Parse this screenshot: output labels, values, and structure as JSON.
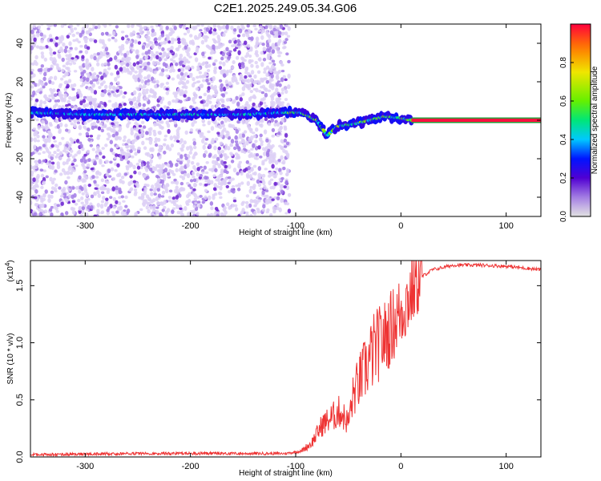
{
  "title": "C2E1.2025.249.05.34.G06",
  "chart_data": [
    {
      "type": "heatmap",
      "name": "spectrogram",
      "xlabel": "Height of straight line (km)",
      "ylabel": "Frequency (Hz)",
      "xlim": [
        -352,
        133
      ],
      "ylim": [
        -50,
        50
      ],
      "xticks": [
        -300,
        -200,
        -100,
        0,
        100
      ],
      "yticks": [
        -40,
        -20,
        0,
        20,
        40
      ],
      "noise_region_end": -106,
      "dominant_frequency_track": [
        {
          "x": -350,
          "y": 4
        },
        {
          "x": -300,
          "y": 3
        },
        {
          "x": -250,
          "y": 3
        },
        {
          "x": -200,
          "y": 3
        },
        {
          "x": -150,
          "y": 3
        },
        {
          "x": -110,
          "y": 4
        },
        {
          "x": -95,
          "y": 4
        },
        {
          "x": -80,
          "y": 0
        },
        {
          "x": -70,
          "y": -8
        },
        {
          "x": -60,
          "y": -3
        },
        {
          "x": -45,
          "y": -2
        },
        {
          "x": -30,
          "y": 0
        },
        {
          "x": -15,
          "y": 2
        },
        {
          "x": 0,
          "y": 1
        },
        {
          "x": 10,
          "y": 0
        },
        {
          "x": 133,
          "y": 0
        }
      ],
      "colorbar": {
        "label": "Normalized spectral amplitude",
        "range": [
          0,
          1
        ],
        "ticks": [
          "0.0",
          "0.2",
          "0.4",
          "0.6",
          "0.8"
        ]
      }
    },
    {
      "type": "line",
      "name": "snr",
      "xlabel": "Height of straight line (km)",
      "ylabel": "SNR (10 * v/v)",
      "scale_label": "(x10",
      "scale_exponent": "4",
      "xlim": [
        -352,
        133
      ],
      "ylim": [
        0,
        1.72
      ],
      "xticks": [
        -300,
        -200,
        -100,
        0,
        100
      ],
      "yticks": [
        0.0,
        0.5,
        1.0,
        1.5
      ],
      "ytick_labels": [
        "0.0",
        "0.5",
        "1.0",
        "1.5"
      ],
      "series": [
        {
          "name": "SNR",
          "color": "#ee3333",
          "points": [
            {
              "x": -352,
              "y": 0.02
            },
            {
              "x": -250,
              "y": 0.03
            },
            {
              "x": -150,
              "y": 0.03
            },
            {
              "x": -110,
              "y": 0.03
            },
            {
              "x": -95,
              "y": 0.05
            },
            {
              "x": -85,
              "y": 0.12
            },
            {
              "x": -75,
              "y": 0.28
            },
            {
              "x": -65,
              "y": 0.35
            },
            {
              "x": -58,
              "y": 0.4
            },
            {
              "x": -50,
              "y": 0.3
            },
            {
              "x": -45,
              "y": 0.55
            },
            {
              "x": -35,
              "y": 0.75
            },
            {
              "x": -25,
              "y": 0.95
            },
            {
              "x": -15,
              "y": 1.05
            },
            {
              "x": -5,
              "y": 1.2
            },
            {
              "x": 5,
              "y": 1.35
            },
            {
              "x": 15,
              "y": 1.55
            },
            {
              "x": 30,
              "y": 1.64
            },
            {
              "x": 50,
              "y": 1.68
            },
            {
              "x": 75,
              "y": 1.68
            },
            {
              "x": 100,
              "y": 1.67
            },
            {
              "x": 133,
              "y": 1.64
            }
          ]
        }
      ]
    }
  ]
}
